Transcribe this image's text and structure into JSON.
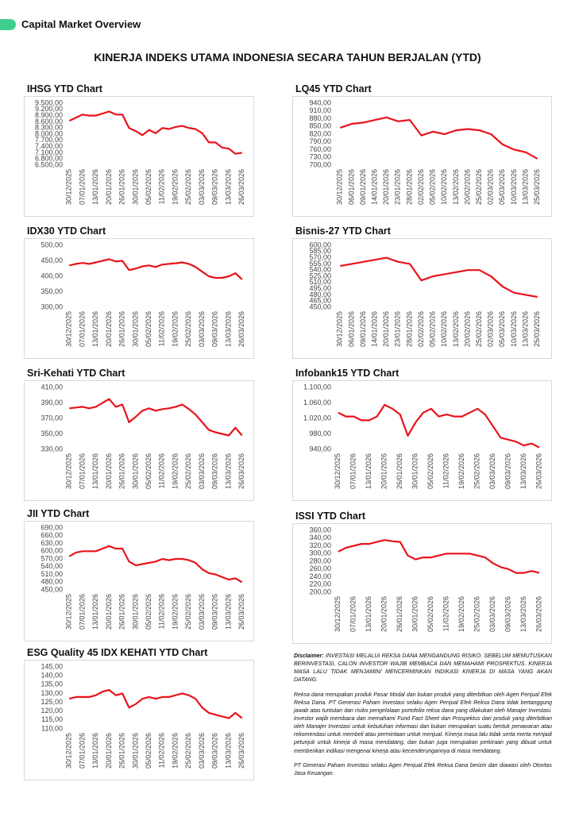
{
  "header": {
    "title": "Capital Market Overview"
  },
  "main_title": "KINERJA INDEKS UTAMA INDONESIA SECARA TAHUN BERJALAN (YTD)",
  "chart_data": [
    {
      "type": "line",
      "title": "IHSG YTD Chart",
      "color": "#e8141b",
      "categories": [
        "30/12/2025",
        null,
        "07/01/2026",
        null,
        "13/01/2026",
        null,
        "20/01/2026",
        null,
        "26/01/2026",
        null,
        "30/01/2026",
        null,
        "05/02/2026",
        null,
        "11/02/2026",
        null,
        "19/02/2026",
        null,
        "25/02/2026",
        null,
        "03/03/2026",
        null,
        "09/03/2026",
        null,
        "13/03/2026",
        null,
        "26/03/2026"
      ],
      "values": [
        8650,
        8800,
        8950,
        8900,
        8900,
        9000,
        9100,
        8950,
        8950,
        8300,
        8150,
        7950,
        8200,
        8050,
        8300,
        8250,
        8350,
        8400,
        8300,
        8250,
        8050,
        7600,
        7600,
        7350,
        7300,
        7050,
        7100
      ],
      "ylim": [
        6500,
        9500
      ],
      "yticks": [
        {
          "value": 6500,
          "label": "6.500,00"
        },
        {
          "value": 6800,
          "label": "6.800,00"
        },
        {
          "value": 7100,
          "label": "7.100,00"
        },
        {
          "value": 7400,
          "label": "7.400,00"
        },
        {
          "value": 7700,
          "label": "7.700,00"
        },
        {
          "value": 8000,
          "label": "8.000,00"
        },
        {
          "value": 8300,
          "label": "8.300,00"
        },
        {
          "value": 8600,
          "label": "8.600,00"
        },
        {
          "value": 8900,
          "label": "8.900,00"
        },
        {
          "value": 9200,
          "label": "9.200,00"
        },
        {
          "value": 9500,
          "label": "9.500,00"
        }
      ]
    },
    {
      "type": "line",
      "title": "LQ45 YTD Chart",
      "color": "#e8141b",
      "categories": [
        "30/12/2025",
        "06/01/2026",
        "09/01/2026",
        "14/01/2026",
        "20/01/2026",
        "23/01/2026",
        "28/01/2026",
        "02/02/2026",
        "05/02/2026",
        "10/02/2026",
        "13/02/2026",
        "20/02/2026",
        "25/02/2026",
        "02/03/2026",
        "05/03/2026",
        "10/03/2026",
        "13/03/2026",
        "25/03/2026"
      ],
      "values": [
        845,
        860,
        865,
        875,
        885,
        870,
        875,
        815,
        830,
        820,
        835,
        840,
        835,
        820,
        780,
        760,
        750,
        725
      ],
      "ylim": [
        700,
        940
      ],
      "yticks": [
        {
          "value": 700,
          "label": "700,00"
        },
        {
          "value": 730,
          "label": "730,00"
        },
        {
          "value": 760,
          "label": "760,00"
        },
        {
          "value": 790,
          "label": "790,00"
        },
        {
          "value": 820,
          "label": "820,00"
        },
        {
          "value": 850,
          "label": "850,00"
        },
        {
          "value": 880,
          "label": "880,00"
        },
        {
          "value": 910,
          "label": "910,00"
        },
        {
          "value": 940,
          "label": "940,00"
        }
      ]
    },
    {
      "type": "line",
      "title": "IDX30 YTD Chart",
      "color": "#e8141b",
      "categories": [
        "30/12/2025",
        null,
        "07/01/2026",
        null,
        "13/01/2026",
        null,
        "20/01/2026",
        null,
        "26/01/2026",
        null,
        "30/01/2026",
        null,
        "05/02/2026",
        null,
        "11/02/2026",
        null,
        "19/02/2026",
        null,
        "25/02/2026",
        null,
        "03/03/2026",
        null,
        "09/03/2026",
        null,
        "13/03/2026",
        null,
        "26/03/2026"
      ],
      "values": [
        435,
        440,
        443,
        440,
        445,
        450,
        455,
        448,
        450,
        420,
        425,
        432,
        435,
        430,
        438,
        440,
        442,
        445,
        440,
        430,
        415,
        400,
        395,
        395,
        400,
        410,
        390
      ],
      "ylim": [
        300,
        500
      ],
      "yticks": [
        {
          "value": 300,
          "label": "300,00"
        },
        {
          "value": 350,
          "label": "350,00"
        },
        {
          "value": 400,
          "label": "400,00"
        },
        {
          "value": 450,
          "label": "450,00"
        },
        {
          "value": 500,
          "label": "500,00"
        }
      ]
    },
    {
      "type": "line",
      "title": "Bisnis-27 YTD Chart",
      "color": "#e8141b",
      "categories": [
        "30/12/2025",
        "06/01/2026",
        "09/01/2026",
        "14/01/2026",
        "20/01/2026",
        "23/01/2026",
        "28/01/2026",
        "02/02/2026",
        "05/02/2026",
        "10/02/2026",
        "13/02/2026",
        "20/02/2026",
        "25/02/2026",
        "02/03/2026",
        "05/03/2026",
        "10/03/2026",
        "13/03/2026",
        "25/03/2026"
      ],
      "values": [
        550,
        555,
        560,
        565,
        570,
        560,
        555,
        515,
        525,
        530,
        535,
        540,
        540,
        525,
        500,
        485,
        480,
        475
      ],
      "ylim": [
        450,
        600
      ],
      "yticks": [
        {
          "value": 450,
          "label": "450,00"
        },
        {
          "value": 465,
          "label": "465,00"
        },
        {
          "value": 480,
          "label": "480,00"
        },
        {
          "value": 495,
          "label": "495,00"
        },
        {
          "value": 510,
          "label": "510,00"
        },
        {
          "value": 525,
          "label": "525,00"
        },
        {
          "value": 540,
          "label": "540,00"
        },
        {
          "value": 555,
          "label": "555,00"
        },
        {
          "value": 570,
          "label": "570,00"
        },
        {
          "value": 585,
          "label": "585,00"
        },
        {
          "value": 600,
          "label": "600,00"
        }
      ]
    },
    {
      "type": "line",
      "title": "Sri-Kehati YTD Chart",
      "color": "#e8141b",
      "categories": [
        "30/12/2025",
        null,
        "07/01/2026",
        null,
        "13/01/2026",
        null,
        "20/01/2026",
        null,
        "26/01/2026",
        null,
        "30/01/2026",
        null,
        "05/02/2026",
        null,
        "11/02/2026",
        null,
        "19/02/2026",
        null,
        "25/02/2026",
        null,
        "03/03/2026",
        null,
        "09/03/2026",
        null,
        "13/03/2026",
        null,
        "26/03/2026"
      ],
      "values": [
        383,
        384,
        385,
        383,
        385,
        390,
        395,
        385,
        388,
        365,
        372,
        380,
        383,
        380,
        382,
        383,
        385,
        388,
        382,
        375,
        365,
        355,
        352,
        350,
        348,
        358,
        348
      ],
      "ylim": [
        330,
        410
      ],
      "yticks": [
        {
          "value": 330,
          "label": "330,00"
        },
        {
          "value": 350,
          "label": "350,00"
        },
        {
          "value": 370,
          "label": "370,00"
        },
        {
          "value": 390,
          "label": "390,00"
        },
        {
          "value": 410,
          "label": "410,00"
        }
      ]
    },
    {
      "type": "line",
      "title": "Infobank15 YTD Chart",
      "color": "#e8141b",
      "categories": [
        "30/12/2025",
        null,
        "07/01/2026",
        null,
        "13/01/2026",
        null,
        "20/01/2026",
        null,
        "26/01/2026",
        null,
        "30/01/2026",
        null,
        "05/02/2026",
        null,
        "11/02/2026",
        null,
        "19/02/2026",
        null,
        "25/02/2026",
        null,
        "03/03/2026",
        null,
        "09/03/2026",
        null,
        "13/03/2026",
        null,
        "26/03/2026"
      ],
      "values": [
        1035,
        1025,
        1025,
        1015,
        1015,
        1025,
        1055,
        1045,
        1030,
        975,
        1010,
        1035,
        1045,
        1025,
        1030,
        1025,
        1025,
        1035,
        1045,
        1030,
        1000,
        970,
        965,
        960,
        950,
        955,
        945
      ],
      "ylim": [
        940,
        1100
      ],
      "yticks": [
        {
          "value": 940,
          "label": "940,00"
        },
        {
          "value": 980,
          "label": "980,00"
        },
        {
          "value": 1020,
          "label": "1.020,00"
        },
        {
          "value": 1060,
          "label": "1.060,00"
        },
        {
          "value": 1100,
          "label": "1.100,00"
        }
      ]
    },
    {
      "type": "line",
      "title": "JII YTD Chart",
      "color": "#e8141b",
      "categories": [
        "30/12/2025",
        null,
        "07/01/2026",
        null,
        "13/01/2026",
        null,
        "20/01/2026",
        null,
        "26/01/2026",
        null,
        "30/01/2026",
        null,
        "05/02/2026",
        null,
        "11/02/2026",
        null,
        "19/02/2026",
        null,
        "25/02/2026",
        null,
        "03/03/2026",
        null,
        "09/03/2026",
        null,
        "13/03/2026",
        null,
        "26/03/2026"
      ],
      "values": [
        580,
        595,
        600,
        600,
        600,
        610,
        620,
        610,
        610,
        560,
        545,
        550,
        555,
        560,
        570,
        565,
        570,
        570,
        565,
        555,
        530,
        515,
        510,
        500,
        490,
        495,
        480
      ],
      "ylim": [
        450,
        690
      ],
      "yticks": [
        {
          "value": 450,
          "label": "450,00"
        },
        {
          "value": 480,
          "label": "480,00"
        },
        {
          "value": 510,
          "label": "510,00"
        },
        {
          "value": 540,
          "label": "540,00"
        },
        {
          "value": 570,
          "label": "570,00"
        },
        {
          "value": 600,
          "label": "600,00"
        },
        {
          "value": 630,
          "label": "630,00"
        },
        {
          "value": 660,
          "label": "660,00"
        },
        {
          "value": 690,
          "label": "690,00"
        }
      ]
    },
    {
      "type": "line",
      "title": "ISSI YTD Chart",
      "color": "#e8141b",
      "categories": [
        "30/12/2025",
        null,
        "07/01/2026",
        null,
        "13/01/2026",
        null,
        "20/01/2026",
        null,
        "26/01/2026",
        null,
        "30/01/2026",
        null,
        "05/02/2026",
        null,
        "11/02/2026",
        null,
        "19/02/2026",
        null,
        "25/02/2026",
        null,
        "03/03/2026",
        null,
        "09/03/2026",
        null,
        "13/03/2026",
        null,
        "26/03/2026"
      ],
      "values": [
        305,
        315,
        320,
        325,
        325,
        330,
        335,
        332,
        330,
        295,
        285,
        290,
        290,
        295,
        300,
        300,
        300,
        300,
        295,
        290,
        275,
        265,
        260,
        250,
        250,
        255,
        250
      ],
      "ylim": [
        200,
        360
      ],
      "yticks": [
        {
          "value": 200,
          "label": "200,00"
        },
        {
          "value": 220,
          "label": "220,00"
        },
        {
          "value": 240,
          "label": "240,00"
        },
        {
          "value": 260,
          "label": "260,00"
        },
        {
          "value": 280,
          "label": "280,00"
        },
        {
          "value": 300,
          "label": "300,00"
        },
        {
          "value": 320,
          "label": "320,00"
        },
        {
          "value": 340,
          "label": "340,00"
        },
        {
          "value": 360,
          "label": "360,00"
        }
      ]
    },
    {
      "type": "line",
      "title": "ESG Quality 45 IDX KEHATI YTD Chart",
      "color": "#e8141b",
      "categories": [
        "30/12/2025",
        null,
        "07/01/2026",
        null,
        "13/01/2026",
        null,
        "20/01/2026",
        null,
        "26/01/2026",
        null,
        "30/01/2026",
        null,
        "05/02/2026",
        null,
        "11/02/2026",
        null,
        "19/02/2026",
        null,
        "25/02/2026",
        null,
        "03/03/2026",
        null,
        "09/03/2026",
        null,
        "13/03/2026",
        null,
        "26/03/2026"
      ],
      "values": [
        127,
        128,
        128,
        128,
        129,
        131,
        132,
        129,
        130,
        122,
        124,
        127,
        128,
        127,
        128,
        128,
        129,
        130,
        129,
        127,
        122,
        119,
        118,
        117,
        116,
        119,
        116
      ],
      "ylim": [
        110,
        145
      ],
      "yticks": [
        {
          "value": 110,
          "label": "110,00"
        },
        {
          "value": 115,
          "label": "115,00"
        },
        {
          "value": 120,
          "label": "120,00"
        },
        {
          "value": 125,
          "label": "125,00"
        },
        {
          "value": 130,
          "label": "130,00"
        },
        {
          "value": 135,
          "label": "135,00"
        },
        {
          "value": 140,
          "label": "140,00"
        },
        {
          "value": 145,
          "label": "145,00"
        }
      ]
    }
  ],
  "disclaimer": {
    "label": "Disclaimer:",
    "lead": "INVESTASI MELALUI REKSA DANA MENGANDUNG RISIKO. SEBELUM MEMUTUSKAN BERINVESTASI, CALON INVESTOR WAJIB MEMBACA DAN MEMAHAMI PROSPEKTUS. KINERJA MASA LALU TIDAK MENJAMIN/ MENCERMINKAN INDIKASI KINERJA DI MASA YANG AKAN DATANG.",
    "paragraphs": [
      "Reksa dana merupakan produk Pasar Modal dan bukan produk yang diterbitkan oleh Agen Penjual Efek Reksa Dana. PT Generasi Paham Investasi selaku Agen Penjual Efek Reksa Dana tidak bertanggung jawab atas tuntutan dan risiko pengelolaan portofolio reksa dana yang dilakukan oleh Manajer Investasi. Investor wajib membaca dan memahami Fund Fact Sheet dan Prospektus dari produk yang diterbitkan oleh Manajer Investasi untuk kebutuhan informasi dan bukan merupakan suatu bentuk penawaran atau rekomendasi untuk membeli atau permintaan untuk menjual. Kinerja masa lalu tidak serta merta menjadi petunjuk untuk kinerja di masa mendatang, dan bukan juga merupakan perkiraan yang dibuat untuk memberikan indikasi mengenai kinerja atau kecenderungannya di masa mendatang.",
      "PT Generasi Paham Investasi selaku Agen Penjual Efek Reksa Dana berizin dan diawasi oleh Otoritas Jasa Keuangan."
    ]
  }
}
